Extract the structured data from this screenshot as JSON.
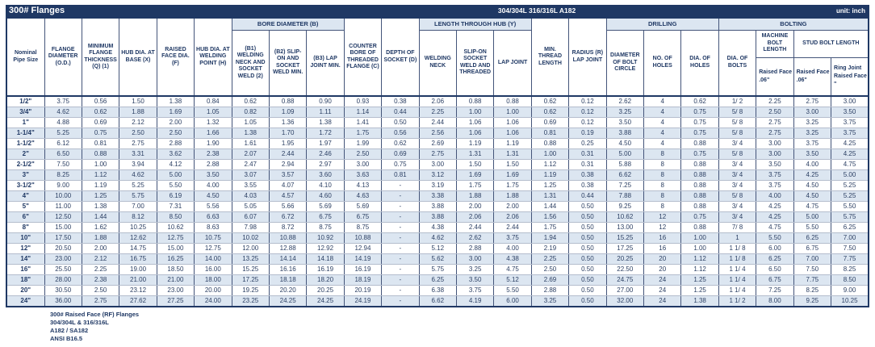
{
  "colors": {
    "navy": "#1f3864",
    "stripe": "#dce6f1"
  },
  "title_bar": {
    "title": "300# Flanges",
    "material": "304/304L 316/316L A182",
    "unit": "unit: inch"
  },
  "table": {
    "header": {
      "pipe_size": "Nominal Pipe Size",
      "od": "FLANGE DIAMETER (O.D.)",
      "thickness": "MINIMUM FLANGE THICKNESS (Q) (1)",
      "hub_base": "HUB DIA. AT BASE (X)",
      "raised_face": "RAISED FACE DIA. (F)",
      "hub_weld": "HUB DIA. AT WELDING POINT (H)",
      "bore_group": "BORE DIAMETER (B)",
      "b1": "(B1) WELDING NECK AND SOCKET WELD (2)",
      "b2": "(B2) SLIP-ON AND SOCKET WELD MIN.",
      "b3": "(B3) LAP JOINT MIN.",
      "counter_bore": "COUNTER BORE OF THREADED FLANGE (C)",
      "socket_depth": "DEPTH OF SOCKET (D)",
      "length_group": "LENGTH THROUGH HUB (Y)",
      "welding_neck": "WELDING NECK",
      "slip_on": "SLIP-ON SOCKET WELD AND THREADED",
      "lap_joint": "LAP JOINT",
      "min_thread": "MIN. THREAD LENGTH",
      "radius": "RADIUS (R) LAP JOINT",
      "drilling_group": "DRILLING",
      "bolt_circle": "DIAMETER OF BOLT CIRCLE",
      "no_holes": "NO. OF HOLES",
      "dia_holes": "DIA. OF HOLES",
      "bolting_group": "BOLTING",
      "dia_bolts": "DIA. OF BOLTS",
      "machine_bolt": "MACHINE BOLT LENGTH",
      "stud_bolt": "STUD BOLT LENGTH",
      "mb_raised": "Raised Face .06\"",
      "sb_raised": "Raised Face .06\"",
      "sb_ring": "Ring Joint Raised Face \""
    },
    "rows": [
      [
        "1/2\"",
        "3.75",
        "0.56",
        "1.50",
        "1.38",
        "0.84",
        "0.62",
        "0.88",
        "0.90",
        "0.93",
        "0.38",
        "2.06",
        "0.88",
        "0.88",
        "0.62",
        "0.12",
        "2.62",
        "4",
        "0.62",
        "1/ 2",
        "2.25",
        "2.75",
        "3.00"
      ],
      [
        "3/4\"",
        "4.62",
        "0.62",
        "1.88",
        "1.69",
        "1.05",
        "0.82",
        "1.09",
        "1.11",
        "1.14",
        "0.44",
        "2.25",
        "1.00",
        "1.00",
        "0.62",
        "0.12",
        "3.25",
        "4",
        "0.75",
        "5/ 8",
        "2.50",
        "3.00",
        "3.50"
      ],
      [
        "1\"",
        "4.88",
        "0.69",
        "2.12",
        "2.00",
        "1.32",
        "1.05",
        "1.36",
        "1.38",
        "1.41",
        "0.50",
        "2.44",
        "1.06",
        "1.06",
        "0.69",
        "0.12",
        "3.50",
        "4",
        "0.75",
        "5/ 8",
        "2.75",
        "3.25",
        "3.75"
      ],
      [
        "1-1/4\"",
        "5.25",
        "0.75",
        "2.50",
        "2.50",
        "1.66",
        "1.38",
        "1.70",
        "1.72",
        "1.75",
        "0.56",
        "2.56",
        "1.06",
        "1.06",
        "0.81",
        "0.19",
        "3.88",
        "4",
        "0.75",
        "5/ 8",
        "2.75",
        "3.25",
        "3.75"
      ],
      [
        "1-1/2\"",
        "6.12",
        "0.81",
        "2.75",
        "2.88",
        "1.90",
        "1.61",
        "1.95",
        "1.97",
        "1.99",
        "0.62",
        "2.69",
        "1.19",
        "1.19",
        "0.88",
        "0.25",
        "4.50",
        "4",
        "0.88",
        "3/ 4",
        "3.00",
        "3.75",
        "4.25"
      ],
      [
        "2\"",
        "6.50",
        "0.88",
        "3.31",
        "3.62",
        "2.38",
        "2.07",
        "2.44",
        "2.46",
        "2.50",
        "0.69",
        "2.75",
        "1.31",
        "1.31",
        "1.00",
        "0.31",
        "5.00",
        "8",
        "0.75",
        "5/ 8",
        "3.00",
        "3.50",
        "4.25"
      ],
      [
        "2-1/2\"",
        "7.50",
        "1.00",
        "3.94",
        "4.12",
        "2.88",
        "2.47",
        "2.94",
        "2.97",
        "3.00",
        "0.75",
        "3.00",
        "1.50",
        "1.50",
        "1.12",
        "0.31",
        "5.88",
        "8",
        "0.88",
        "3/ 4",
        "3.50",
        "4.00",
        "4.75"
      ],
      [
        "3\"",
        "8.25",
        "1.12",
        "4.62",
        "5.00",
        "3.50",
        "3.07",
        "3.57",
        "3.60",
        "3.63",
        "0.81",
        "3.12",
        "1.69",
        "1.69",
        "1.19",
        "0.38",
        "6.62",
        "8",
        "0.88",
        "3/ 4",
        "3.75",
        "4.25",
        "5.00"
      ],
      [
        "3-1/2\"",
        "9.00",
        "1.19",
        "5.25",
        "5.50",
        "4.00",
        "3.55",
        "4.07",
        "4.10",
        "4.13",
        "-",
        "3.19",
        "1.75",
        "1.75",
        "1.25",
        "0.38",
        "7.25",
        "8",
        "0.88",
        "3/ 4",
        "3.75",
        "4.50",
        "5.25"
      ],
      [
        "4\"",
        "10.00",
        "1.25",
        "5.75",
        "6.19",
        "4.50",
        "4.03",
        "4.57",
        "4.60",
        "4.63",
        "-",
        "3.38",
        "1.88",
        "1.88",
        "1.31",
        "0.44",
        "7.88",
        "8",
        "0.88",
        "5/ 8",
        "4.00",
        "4.50",
        "5.25"
      ],
      [
        "5\"",
        "11.00",
        "1.38",
        "7.00",
        "7.31",
        "5.56",
        "5.05",
        "5.66",
        "5.69",
        "5.69",
        "-",
        "3.88",
        "2.00",
        "2.00",
        "1.44",
        "0.50",
        "9.25",
        "8",
        "0.88",
        "3/ 4",
        "4.25",
        "4.75",
        "5.50"
      ],
      [
        "6\"",
        "12.50",
        "1.44",
        "8.12",
        "8.50",
        "6.63",
        "6.07",
        "6.72",
        "6.75",
        "6.75",
        "-",
        "3.88",
        "2.06",
        "2.06",
        "1.56",
        "0.50",
        "10.62",
        "12",
        "0.75",
        "3/ 4",
        "4.25",
        "5.00",
        "5.75"
      ],
      [
        "8\"",
        "15.00",
        "1.62",
        "10.25",
        "10.62",
        "8.63",
        "7.98",
        "8.72",
        "8.75",
        "8.75",
        "-",
        "4.38",
        "2.44",
        "2.44",
        "1.75",
        "0.50",
        "13.00",
        "12",
        "0.88",
        "7/ 8",
        "4.75",
        "5.50",
        "6.25"
      ],
      [
        "10\"",
        "17.50",
        "1.88",
        "12.62",
        "12.75",
        "10.75",
        "10.02",
        "10.88",
        "10.92",
        "10.88",
        "-",
        "4.62",
        "2.62",
        "3.75",
        "1.94",
        "0.50",
        "15.25",
        "16",
        "1.00",
        "1",
        "5.50",
        "6.25",
        "7.00"
      ],
      [
        "12\"",
        "20.50",
        "2.00",
        "14.75",
        "15.00",
        "12.75",
        "12.00",
        "12.88",
        "12.92",
        "12.94",
        "-",
        "5.12",
        "2.88",
        "4.00",
        "2.19",
        "0.50",
        "17.25",
        "16",
        "1.00",
        "1 1/ 8",
        "6.00",
        "6.75",
        "7.50"
      ],
      [
        "14\"",
        "23.00",
        "2.12",
        "16.75",
        "16.25",
        "14.00",
        "13.25",
        "14.14",
        "14.18",
        "14.19",
        "-",
        "5.62",
        "3.00",
        "4.38",
        "2.25",
        "0.50",
        "20.25",
        "20",
        "1.12",
        "1 1/ 8",
        "6.25",
        "7.00",
        "7.75"
      ],
      [
        "16\"",
        "25.50",
        "2.25",
        "19.00",
        "18.50",
        "16.00",
        "15.25",
        "16.16",
        "16.19",
        "16.19",
        "-",
        "5.75",
        "3.25",
        "4.75",
        "2.50",
        "0.50",
        "22.50",
        "20",
        "1.12",
        "1 1/ 4",
        "6.50",
        "7.50",
        "8.25"
      ],
      [
        "18\"",
        "28.00",
        "2.38",
        "21.00",
        "21.00",
        "18.00",
        "17.25",
        "18.18",
        "18.20",
        "18.19",
        "-",
        "6.25",
        "3.50",
        "5.12",
        "2.69",
        "0.50",
        "24.75",
        "24",
        "1.25",
        "1 1/ 4",
        "6.75",
        "7.75",
        "8.50"
      ],
      [
        "20\"",
        "30.50",
        "2.50",
        "23.12",
        "23.00",
        "20.00",
        "19.25",
        "20.20",
        "20.25",
        "20.19",
        "-",
        "6.38",
        "3.75",
        "5.50",
        "2.88",
        "0.50",
        "27.00",
        "24",
        "1.25",
        "1 1/ 4",
        "7.25",
        "8.25",
        "9.00"
      ],
      [
        "24\"",
        "36.00",
        "2.75",
        "27.62",
        "27.25",
        "24.00",
        "23.25",
        "24.25",
        "24.25",
        "24.19",
        "-",
        "6.62",
        "4.19",
        "6.00",
        "3.25",
        "0.50",
        "32.00",
        "24",
        "1.38",
        "1 1/ 2",
        "8.00",
        "9.25",
        "10.25"
      ]
    ]
  },
  "footer": {
    "lines": [
      "300# Raised Face (RF) Flanges",
      "304/304L & 316/316L",
      "A182 / SA182",
      "ANSI B16.5"
    ]
  }
}
